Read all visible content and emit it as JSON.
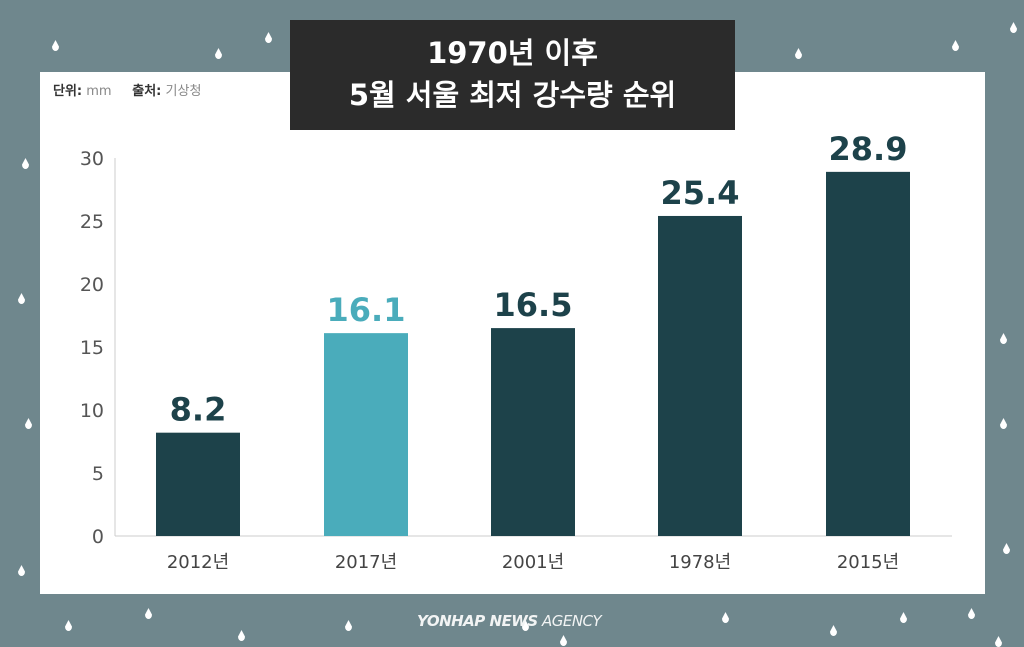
{
  "title_line1": "1970년 이후",
  "title_line2": "5월 서울 최저 강수량 순위",
  "unit_label": "단위:",
  "unit_value": "mm",
  "source_label": "출처:",
  "source_value": "기상청",
  "logo": {
    "bold": "YONHAP NEWS",
    "light": "AGENCY"
  },
  "colors": {
    "background": "#6f878d",
    "bar": "#1d424a",
    "highlight": "#4aacbb",
    "title_bg": "#2b2b2b"
  },
  "chart_data": {
    "type": "bar",
    "categories": [
      "2012년",
      "2017년",
      "2001년",
      "1978년",
      "2015년"
    ],
    "values": [
      8.2,
      16.1,
      16.5,
      25.4,
      28.9
    ],
    "highlight_index": 1,
    "ylim": [
      0,
      30
    ],
    "yticks": [
      0,
      5,
      10,
      15,
      20,
      25,
      30
    ],
    "grid": false
  }
}
